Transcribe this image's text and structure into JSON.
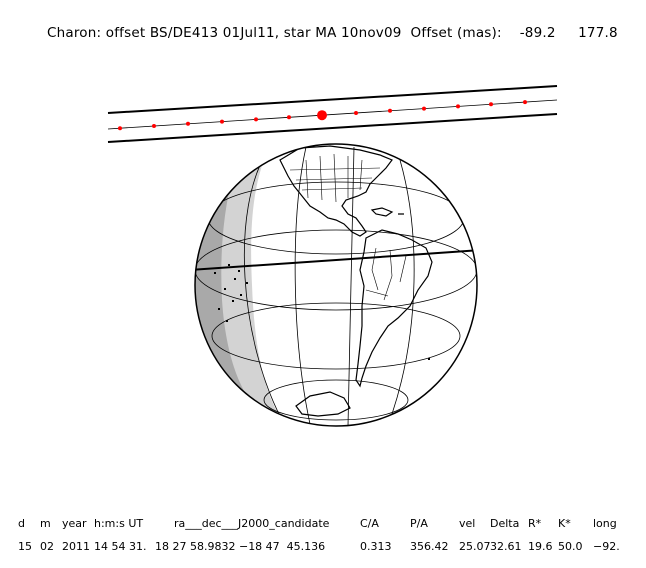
{
  "header": {
    "title": "Charon: offset BS/DE413 01Jul11, star MA 10nov09  Offset (mas):",
    "offset_x": "-89.2",
    "offset_y": "177.8"
  },
  "table": {
    "columns": [
      "d",
      "m",
      "year",
      "h:m:s UT",
      "ra___dec___J2000_candidate",
      "C/A",
      "P/A",
      "vel",
      "Delta",
      "R*",
      "K*",
      "long"
    ],
    "values": [
      "15",
      "02",
      "2011",
      "14 54 31.",
      "18 27 58.9832 −18 47  45.136",
      "0.313",
      "356.42",
      "25.07",
      "32.61",
      "19.6",
      "50.0",
      "−92."
    ]
  },
  "colors": {
    "line": "#000000",
    "marker": "#ff0000",
    "shadow_light": "#d3d3d3",
    "shadow_dark": "#a9a9a9"
  }
}
